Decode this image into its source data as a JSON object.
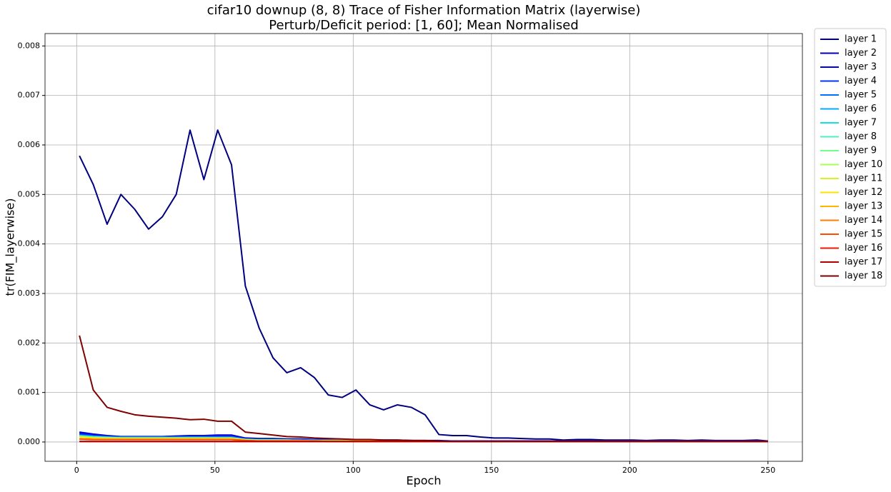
{
  "chart_data": {
    "type": "line",
    "title": "cifar10 downup (8, 8) Trace of Fisher Information Matrix (layerwise)",
    "subtitle": "Perturb/Deficit period: [1, 60]; Mean Normalised",
    "xlabel": "Epoch",
    "ylabel": "tr(FIM_layerwise)",
    "grid": true,
    "legend": "outside upper right",
    "xlim": [
      -11.45,
      262.45
    ],
    "xticks": [
      0,
      50,
      100,
      150,
      200,
      250
    ],
    "ylim": [
      -0.00039,
      0.00825
    ],
    "yticks": [
      {
        "value": 0,
        "label": "0.000"
      },
      {
        "value": 0.001,
        "label": "0.001"
      },
      {
        "value": 0.002,
        "label": "0.002"
      },
      {
        "value": 0.003,
        "label": "0.003"
      },
      {
        "value": 0.004,
        "label": "0.004"
      },
      {
        "value": 0.005,
        "label": "0.005"
      },
      {
        "value": 0.006,
        "label": "0.006"
      },
      {
        "value": 0.007,
        "label": "0.007"
      },
      {
        "value": 0.008,
        "label": "0.008"
      }
    ],
    "x": [
      1,
      6,
      11,
      16,
      21,
      26,
      31,
      36,
      41,
      46,
      51,
      56,
      61,
      66,
      71,
      76,
      81,
      86,
      91,
      96,
      101,
      106,
      111,
      116,
      121,
      126,
      131,
      136,
      141,
      146,
      151,
      156,
      161,
      166,
      171,
      176,
      181,
      186,
      191,
      196,
      201,
      206,
      211,
      216,
      221,
      226,
      231,
      236,
      241,
      246,
      250
    ],
    "series": [
      {
        "name": "layer 1",
        "color": "#00007f",
        "values": [
          0.00578,
          0.0052,
          0.0044,
          0.005,
          0.0047,
          0.0043,
          0.00455,
          0.005,
          0.0063,
          0.0053,
          0.0063,
          0.0056,
          0.00315,
          0.0023,
          0.0017,
          0.0014,
          0.0015,
          0.0013,
          0.00095,
          0.0009,
          0.00105,
          0.00075,
          0.00065,
          0.00075,
          0.0007,
          0.00055,
          0.00015,
          0.00013,
          0.00013,
          0.0001,
          8e-05,
          8e-05,
          7e-05,
          6e-05,
          6e-05,
          4e-05,
          5e-05,
          5e-05,
          4e-05,
          4e-05,
          4e-05,
          3e-05,
          4e-05,
          4e-05,
          3e-05,
          4e-05,
          3e-05,
          3e-05,
          3e-05,
          4e-05,
          2e-05
        ]
      },
      {
        "name": "layer 2",
        "color": "#0000b6",
        "values": [
          0.0002,
          0.00016,
          0.00013,
          0.00011,
          0.00011,
          0.00011,
          0.00011,
          0.00012,
          0.00013,
          0.00013,
          0.00014,
          0.00014,
          8e-05,
          7e-05,
          7e-05,
          6e-05,
          6e-05,
          5e-05,
          5e-05,
          5e-05,
          4e-05,
          4e-05,
          4e-05,
          4e-05,
          3e-05,
          3e-05,
          3e-05,
          2e-05,
          2e-05,
          2e-05,
          2e-05,
          2e-05,
          2e-05,
          2e-05,
          2e-05,
          2e-05,
          2e-05,
          2e-05,
          2e-05,
          2e-05,
          2e-05,
          2e-05,
          2e-05,
          2e-05,
          2e-05,
          2e-05,
          2e-05,
          2e-05,
          2e-05,
          2e-05,
          2e-05
        ]
      },
      {
        "name": "layer 3",
        "color": "#0000f1",
        "values": [
          0.00018,
          0.00015,
          0.00012,
          0.0001,
          0.0001,
          0.0001,
          0.0001,
          0.00011,
          0.00012,
          0.00012,
          0.00013,
          0.00013,
          7e-05,
          6e-05,
          6e-05,
          5e-05,
          5e-05,
          5e-05,
          4e-05,
          4e-05,
          4e-05,
          3e-05,
          3e-05,
          3e-05,
          3e-05,
          2e-05,
          2e-05,
          2e-05,
          2e-05,
          2e-05,
          2e-05,
          2e-05,
          2e-05,
          2e-05,
          2e-05,
          2e-05,
          2e-05,
          2e-05,
          2e-05,
          2e-05,
          2e-05,
          2e-05,
          2e-05,
          2e-05,
          2e-05,
          2e-05,
          2e-05,
          2e-05,
          2e-05,
          2e-05,
          2e-05
        ]
      },
      {
        "name": "layer 4",
        "color": "#0034ff",
        "values": [
          0.00016,
          0.00013,
          0.00011,
          0.0001,
          0.0001,
          0.0001,
          0.0001,
          0.0001,
          0.00011,
          0.00011,
          0.00011,
          0.00011,
          6e-05,
          5e-05,
          5e-05,
          4e-05,
          4e-05,
          4e-05,
          3e-05,
          3e-05,
          3e-05,
          3e-05,
          2e-05,
          2e-05,
          2e-05,
          2e-05,
          2e-05,
          1e-05,
          1e-05,
          1e-05,
          1e-05,
          1e-05,
          1e-05,
          1e-05,
          1e-05,
          1e-05,
          1e-05,
          1e-05,
          1e-05,
          1e-05,
          1e-05,
          1e-05,
          1e-05,
          1e-05,
          1e-05,
          1e-05,
          1e-05,
          1e-05,
          1e-05,
          1e-05,
          1e-05
        ]
      },
      {
        "name": "layer 5",
        "color": "#0070ff",
        "values": [
          0.00014,
          0.00012,
          0.0001,
          0.0001,
          0.0001,
          0.0001,
          0.0001,
          0.0001,
          0.0001,
          0.0001,
          0.0001,
          0.0001,
          6e-05,
          5e-05,
          5e-05,
          4e-05,
          4e-05,
          4e-05,
          3e-05,
          3e-05,
          3e-05,
          3e-05,
          2e-05,
          2e-05,
          2e-05,
          2e-05,
          2e-05,
          1e-05,
          1e-05,
          1e-05,
          1e-05,
          1e-05,
          1e-05,
          1e-05,
          1e-05,
          1e-05,
          1e-05,
          1e-05,
          1e-05,
          1e-05,
          1e-05,
          1e-05,
          1e-05,
          1e-05,
          1e-05,
          1e-05,
          1e-05,
          1e-05,
          1e-05,
          1e-05,
          1e-05
        ]
      },
      {
        "name": "layer 6",
        "color": "#00acff",
        "values": [
          0.00013,
          0.00011,
          0.0001,
          9e-05,
          9e-05,
          9e-05,
          9e-05,
          9e-05,
          9e-05,
          9e-05,
          9e-05,
          9e-05,
          5e-05,
          4e-05,
          4e-05,
          4e-05,
          3e-05,
          3e-05,
          3e-05,
          3e-05,
          2e-05,
          2e-05,
          2e-05,
          2e-05,
          2e-05,
          1e-05,
          1e-05,
          1e-05,
          1e-05,
          1e-05,
          1e-05,
          1e-05,
          1e-05,
          1e-05,
          1e-05,
          1e-05,
          1e-05,
          1e-05,
          1e-05,
          1e-05,
          1e-05,
          1e-05,
          1e-05,
          1e-05,
          1e-05,
          1e-05,
          1e-05,
          1e-05,
          1e-05,
          1e-05,
          1e-05
        ]
      },
      {
        "name": "layer 7",
        "color": "#16e0e0",
        "values": [
          0.00012,
          0.0001,
          9e-05,
          8e-05,
          8e-05,
          8e-05,
          8e-05,
          8e-05,
          8e-05,
          8e-05,
          8e-05,
          8e-05,
          5e-05,
          4e-05,
          4e-05,
          4e-05,
          3e-05,
          3e-05,
          3e-05,
          3e-05,
          2e-05,
          2e-05,
          2e-05,
          2e-05,
          2e-05,
          1e-05,
          1e-05,
          1e-05,
          1e-05,
          1e-05,
          1e-05,
          1e-05,
          1e-05,
          1e-05,
          1e-05,
          1e-05,
          1e-05,
          1e-05,
          1e-05,
          1e-05,
          1e-05,
          1e-05,
          1e-05,
          1e-05,
          1e-05,
          1e-05,
          1e-05,
          1e-05,
          1e-05,
          1e-05,
          1e-05
        ]
      },
      {
        "name": "layer 8",
        "color": "#4cf0c0",
        "values": [
          0.00012,
          0.0001,
          9e-05,
          8e-05,
          8e-05,
          8e-05,
          8e-05,
          8e-05,
          8e-05,
          8e-05,
          8e-05,
          8e-05,
          5e-05,
          4e-05,
          4e-05,
          4e-05,
          3e-05,
          3e-05,
          3e-05,
          3e-05,
          2e-05,
          2e-05,
          2e-05,
          2e-05,
          2e-05,
          1e-05,
          1e-05,
          1e-05,
          1e-05,
          1e-05,
          1e-05,
          1e-05,
          1e-05,
          1e-05,
          1e-05,
          1e-05,
          1e-05,
          1e-05,
          1e-05,
          1e-05,
          1e-05,
          1e-05,
          1e-05,
          1e-05,
          1e-05,
          1e-05,
          1e-05,
          1e-05,
          1e-05,
          1e-05,
          1e-05
        ]
      },
      {
        "name": "layer 9",
        "color": "#70ff8a",
        "values": [
          0.00012,
          0.0001,
          9e-05,
          8e-05,
          8e-05,
          8e-05,
          8e-05,
          8e-05,
          8e-05,
          8e-05,
          8e-05,
          8e-05,
          5e-05,
          4e-05,
          4e-05,
          4e-05,
          3e-05,
          3e-05,
          3e-05,
          3e-05,
          2e-05,
          2e-05,
          2e-05,
          2e-05,
          2e-05,
          1e-05,
          1e-05,
          1e-05,
          1e-05,
          1e-05,
          1e-05,
          1e-05,
          1e-05,
          1e-05,
          1e-05,
          1e-05,
          1e-05,
          1e-05,
          1e-05,
          1e-05,
          1e-05,
          1e-05,
          1e-05,
          1e-05,
          1e-05,
          1e-05,
          1e-05,
          1e-05,
          1e-05,
          1e-05,
          1e-05
        ]
      },
      {
        "name": "layer 10",
        "color": "#a4ff56",
        "values": [
          0.0001,
          8e-05,
          7e-05,
          7e-05,
          7e-05,
          7e-05,
          7e-05,
          7e-05,
          7e-05,
          7e-05,
          7e-05,
          7e-05,
          4e-05,
          3e-05,
          3e-05,
          3e-05,
          3e-05,
          2e-05,
          2e-05,
          2e-05,
          2e-05,
          2e-05,
          1e-05,
          1e-05,
          1e-05,
          1e-05,
          1e-05,
          1e-05,
          1e-05,
          1e-05,
          1e-05,
          1e-05,
          1e-05,
          1e-05,
          1e-05,
          1e-05,
          1e-05,
          1e-05,
          1e-05,
          1e-05,
          1e-05,
          1e-05,
          1e-05,
          1e-05,
          1e-05,
          1e-05,
          1e-05,
          1e-05,
          1e-05,
          1e-05,
          1e-05
        ]
      },
      {
        "name": "layer 11",
        "color": "#d8f222",
        "values": [
          0.0001,
          8e-05,
          7e-05,
          7e-05,
          7e-05,
          7e-05,
          7e-05,
          7e-05,
          7e-05,
          7e-05,
          7e-05,
          7e-05,
          4e-05,
          3e-05,
          3e-05,
          3e-05,
          3e-05,
          2e-05,
          2e-05,
          2e-05,
          2e-05,
          2e-05,
          1e-05,
          1e-05,
          1e-05,
          1e-05,
          1e-05,
          1e-05,
          1e-05,
          1e-05,
          1e-05,
          1e-05,
          1e-05,
          1e-05,
          1e-05,
          1e-05,
          1e-05,
          1e-05,
          1e-05,
          1e-05,
          1e-05,
          1e-05,
          1e-05,
          1e-05,
          1e-05,
          1e-05,
          1e-05,
          1e-05,
          1e-05,
          1e-05,
          1e-05
        ]
      },
      {
        "name": "layer 12",
        "color": "#ffe200",
        "values": [
          0.0001,
          8e-05,
          7e-05,
          7e-05,
          7e-05,
          7e-05,
          7e-05,
          7e-05,
          7e-05,
          7e-05,
          7e-05,
          7e-05,
          4e-05,
          3e-05,
          3e-05,
          3e-05,
          3e-05,
          2e-05,
          2e-05,
          2e-05,
          2e-05,
          2e-05,
          1e-05,
          1e-05,
          1e-05,
          1e-05,
          1e-05,
          1e-05,
          1e-05,
          1e-05,
          1e-05,
          1e-05,
          1e-05,
          1e-05,
          1e-05,
          1e-05,
          1e-05,
          1e-05,
          1e-05,
          1e-05,
          1e-05,
          1e-05,
          1e-05,
          1e-05,
          1e-05,
          1e-05,
          1e-05,
          1e-05,
          1e-05,
          1e-05,
          1e-05
        ]
      },
      {
        "name": "layer 13",
        "color": "#ffb400",
        "values": [
          6e-05,
          5e-05,
          5e-05,
          5e-05,
          5e-05,
          5e-05,
          5e-05,
          5e-05,
          5e-05,
          5e-05,
          5e-05,
          5e-05,
          3e-05,
          2e-05,
          2e-05,
          2e-05,
          2e-05,
          2e-05,
          1e-05,
          1e-05,
          1e-05,
          1e-05,
          1e-05,
          1e-05,
          1e-05,
          1e-05,
          1e-05,
          1e-05,
          1e-05,
          1e-05,
          1e-05,
          1e-05,
          1e-05,
          1e-05,
          1e-05,
          1e-05,
          1e-05,
          1e-05,
          1e-05,
          1e-05,
          1e-05,
          1e-05,
          1e-05,
          1e-05,
          1e-05,
          1e-05,
          1e-05,
          1e-05,
          1e-05,
          1e-05,
          1e-05
        ]
      },
      {
        "name": "layer 14",
        "color": "#ff7c00",
        "values": [
          6e-05,
          5e-05,
          5e-05,
          5e-05,
          5e-05,
          5e-05,
          5e-05,
          5e-05,
          5e-05,
          5e-05,
          5e-05,
          5e-05,
          3e-05,
          2e-05,
          2e-05,
          2e-05,
          2e-05,
          2e-05,
          1e-05,
          1e-05,
          1e-05,
          1e-05,
          1e-05,
          1e-05,
          1e-05,
          1e-05,
          1e-05,
          1e-05,
          1e-05,
          1e-05,
          1e-05,
          1e-05,
          1e-05,
          1e-05,
          1e-05,
          1e-05,
          1e-05,
          1e-05,
          1e-05,
          1e-05,
          1e-05,
          1e-05,
          1e-05,
          1e-05,
          1e-05,
          1e-05,
          1e-05,
          1e-05,
          1e-05,
          1e-05,
          1e-05
        ]
      },
      {
        "name": "layer 15",
        "color": "#ff4a00",
        "values": [
          6e-05,
          5e-05,
          5e-05,
          5e-05,
          5e-05,
          5e-05,
          5e-05,
          5e-05,
          5e-05,
          5e-05,
          5e-05,
          5e-05,
          3e-05,
          2e-05,
          2e-05,
          2e-05,
          2e-05,
          2e-05,
          1e-05,
          1e-05,
          1e-05,
          1e-05,
          1e-05,
          1e-05,
          1e-05,
          1e-05,
          1e-05,
          1e-05,
          1e-05,
          1e-05,
          1e-05,
          1e-05,
          1e-05,
          1e-05,
          1e-05,
          1e-05,
          1e-05,
          1e-05,
          1e-05,
          1e-05,
          1e-05,
          1e-05,
          1e-05,
          1e-05,
          1e-05,
          1e-05,
          1e-05,
          1e-05,
          1e-05,
          1e-05,
          1e-05
        ]
      },
      {
        "name": "layer 16",
        "color": "#f11600",
        "values": [
          1e-05,
          1e-05,
          1e-05,
          1e-05,
          1e-05,
          1e-05,
          1e-05,
          1e-05,
          1e-05,
          1e-05,
          1e-05,
          1e-05,
          1e-05,
          1e-05,
          1e-05,
          1e-05,
          1e-05,
          1e-05,
          1e-05,
          1e-05,
          1e-05,
          1e-05,
          1e-05,
          1e-05,
          1e-05,
          1e-05,
          1e-05,
          1e-05,
          1e-05,
          1e-05,
          1e-05,
          1e-05,
          1e-05,
          1e-05,
          1e-05,
          1e-05,
          1e-05,
          1e-05,
          1e-05,
          1e-05,
          1e-05,
          1e-05,
          1e-05,
          1e-05,
          1e-05,
          1e-05,
          1e-05,
          1e-05,
          1e-05,
          1e-05,
          1e-05
        ]
      },
      {
        "name": "layer 17",
        "color": "#b60000",
        "values": [
          1e-05,
          1e-05,
          1e-05,
          1e-05,
          1e-05,
          1e-05,
          1e-05,
          1e-05,
          1e-05,
          1e-05,
          1e-05,
          1e-05,
          1e-05,
          1e-05,
          1e-05,
          1e-05,
          1e-05,
          1e-05,
          1e-05,
          1e-05,
          1e-05,
          1e-05,
          1e-05,
          1e-05,
          1e-05,
          1e-05,
          1e-05,
          1e-05,
          1e-05,
          1e-05,
          1e-05,
          1e-05,
          1e-05,
          1e-05,
          1e-05,
          1e-05,
          1e-05,
          1e-05,
          1e-05,
          1e-05,
          1e-05,
          1e-05,
          1e-05,
          1e-05,
          1e-05,
          1e-05,
          1e-05,
          1e-05,
          1e-05,
          1e-05,
          1e-05
        ]
      },
      {
        "name": "layer 18",
        "color": "#7f0000",
        "values": [
          0.00215,
          0.00105,
          0.0007,
          0.00062,
          0.00055,
          0.00052,
          0.0005,
          0.00048,
          0.00045,
          0.00046,
          0.00042,
          0.00042,
          0.0002,
          0.00017,
          0.00014,
          0.00011,
          0.0001,
          8e-05,
          7e-05,
          6e-05,
          5e-05,
          5e-05,
          4e-05,
          4e-05,
          3e-05,
          3e-05,
          2e-05,
          1e-05,
          1e-05,
          1e-05,
          1e-05,
          1e-05,
          1e-05,
          1e-05,
          1e-05,
          1e-05,
          1e-05,
          1e-05,
          1e-05,
          1e-05,
          1e-05,
          1e-05,
          1e-05,
          1e-05,
          1e-05,
          1e-05,
          1e-05,
          1e-05,
          1e-05,
          1e-05,
          1e-05
        ]
      }
    ]
  }
}
